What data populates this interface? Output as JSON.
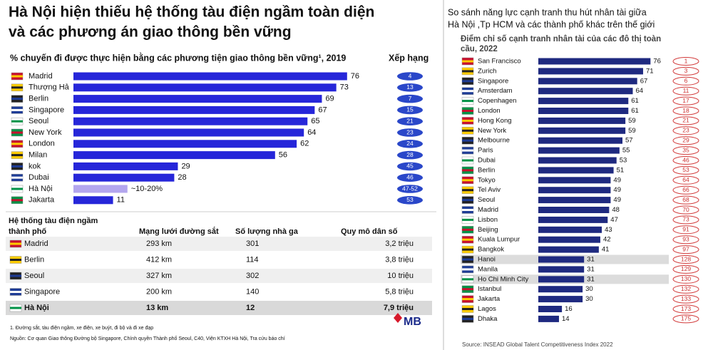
{
  "header": {
    "title": [
      "Hà Nội hiện thiếu hệ thống tàu điện ngầm toàn diện",
      "và các phương án giao thông bền vững"
    ]
  },
  "chart_data": [
    {
      "type": "bar",
      "orientation": "horizontal",
      "title": "% chuyến đi được thực hiện bằng các phương tiện giao thông bền vững¹, 2019",
      "rank_header": "Xếp hạng",
      "categories": [
        "Madrid",
        "Thượng Hả",
        "Berlin",
        "Singapore",
        "Seoul",
        "New York",
        "London",
        "Milan",
        "kok",
        "Dubai",
        "Hà Nội",
        "Jakarta"
      ],
      "values": [
        76,
        73,
        69,
        67,
        65,
        64,
        62,
        56,
        29,
        28,
        15,
        11
      ],
      "value_labels": [
        null,
        null,
        null,
        null,
        null,
        null,
        null,
        null,
        null,
        null,
        "~10-20%",
        null
      ],
      "colors": [
        "#2626d9",
        "#2626d9",
        "#2626d9",
        "#2626d9",
        "#2626d9",
        "#2626d9",
        "#2626d9",
        "#2626d9",
        "#2626d9",
        "#2626d9",
        "#b3a6ee",
        "#2626d9"
      ],
      "ranks": [
        "4",
        "13",
        "7",
        "15",
        "21",
        "23",
        "24",
        "28",
        "45",
        "46",
        "47-52",
        "53"
      ]
    },
    {
      "type": "bar",
      "orientation": "horizontal",
      "title": [
        "Điểm chỉ số cạnh tranh nhân tài của các đô thị toàn",
        "cầu, 2022"
      ],
      "color": "#1f2a80",
      "categories": [
        "San Francisco",
        "Zurich",
        "Singapore",
        "Amsterdam",
        "Copenhagen",
        "London",
        "Hong Kong",
        "New York",
        "Melbourne",
        "Paris",
        "Dubai",
        "Berlin",
        "Tokyo",
        "Tel Aviv",
        "Seoul",
        "Madrid",
        "Lisbon",
        "Beijing",
        "Kuala Lumpur",
        "Bangkok",
        "Hanoi",
        "Manila",
        "Ho Chi Minh City",
        "Istanbul",
        "Jakarta",
        "Lagos",
        "Dhaka"
      ],
      "values": [
        76,
        71,
        67,
        64,
        61,
        61,
        59,
        59,
        57,
        55,
        53,
        51,
        49,
        49,
        49,
        48,
        47,
        43,
        42,
        41,
        31,
        31,
        31,
        30,
        30,
        16,
        14
      ],
      "ranks": [
        1,
        3,
        6,
        11,
        17,
        18,
        21,
        23,
        29,
        35,
        46,
        53,
        64,
        66,
        68,
        70,
        73,
        91,
        93,
        97,
        128,
        129,
        130,
        132,
        133,
        173,
        175
      ]
    }
  ],
  "table": {
    "header": [
      [
        "Hệ thống tàu điện ngầm",
        "thành phố"
      ],
      "Mạng lưới đường sắt",
      "Số lượng nhà ga",
      "Quy mô dân số"
    ],
    "rows": [
      [
        "Madrid",
        "293 km",
        "301",
        "3,2 triệu"
      ],
      [
        "Berlin",
        "412 km",
        "114",
        "3,8 triệu"
      ],
      [
        "Seoul",
        "327 km",
        "302",
        "10 triệu"
      ],
      [
        "Singapore",
        "200 km",
        "140",
        "5,8 triệu"
      ],
      [
        "Hà Nội",
        "13 km",
        "12",
        "7,9 triệu"
      ]
    ]
  },
  "footnotes": [
    "1.   Đường sắt, tàu điện ngầm, xe điện, xe buýt, đi bộ và đi xe đạp",
    "Nguồn: Cơ quan Giao thông Đường bộ Singapore, Chính quyền Thành phố Seoul, C40, Viện KTXH Hà Nội, Tra cứu báo chí"
  ],
  "logo": "MB",
  "right": {
    "title": [
      "So sánh năng lực cạnh tranh thu hút nhân tài giữa",
      "Hà Nội ,Tp HCM và các thành phố khác trên thế giới"
    ],
    "source": "Source: INSEAD Global Talent Competitiveness Index 2022"
  }
}
